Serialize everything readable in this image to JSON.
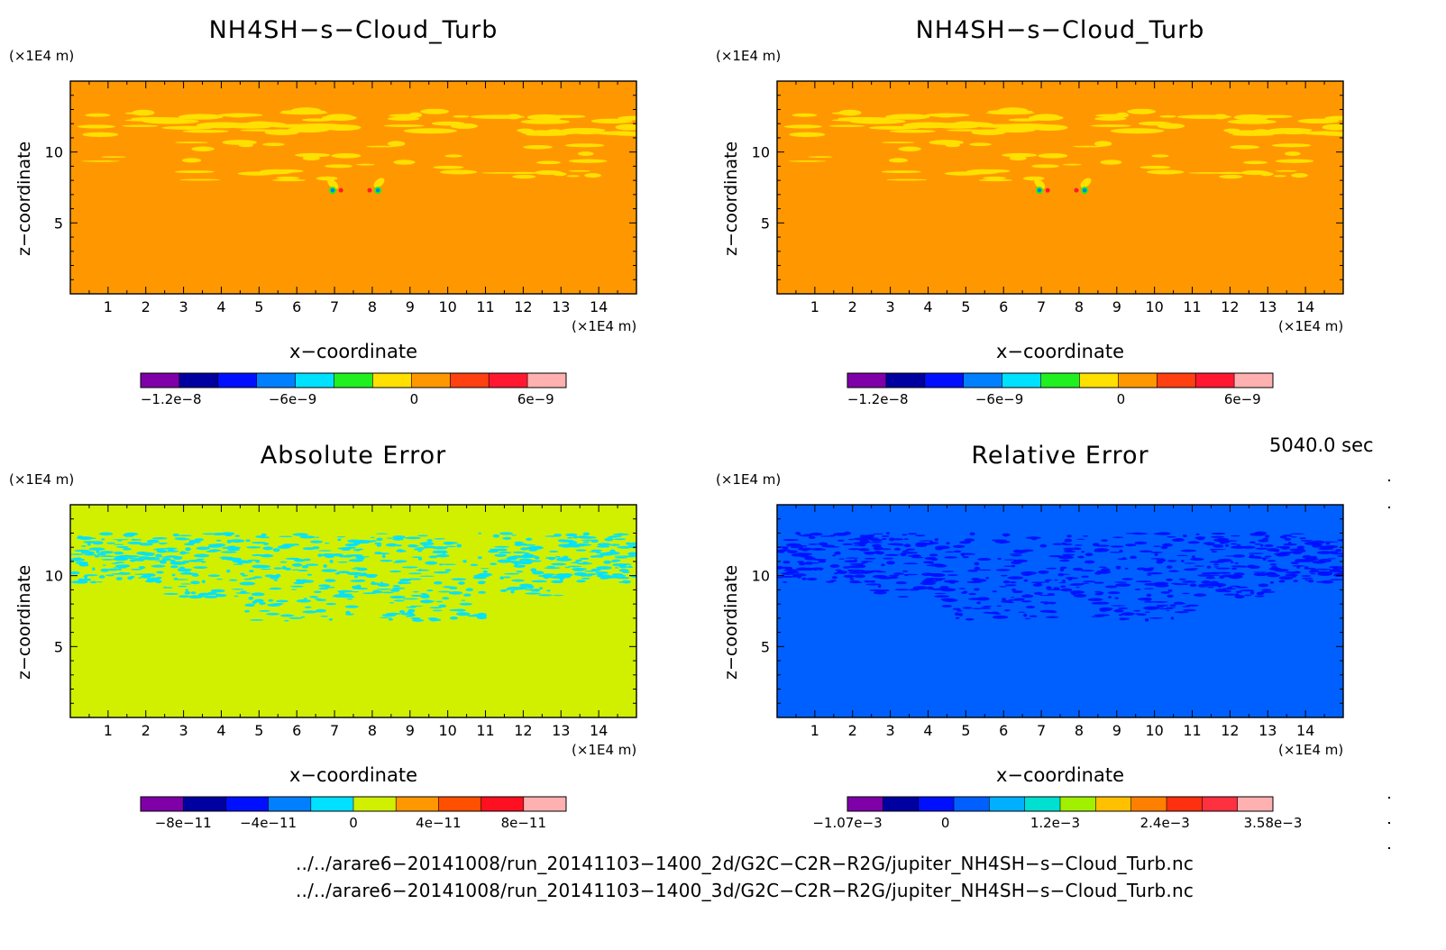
{
  "panels": [
    {
      "id": "top-left",
      "title": "NH4SH−s−Cloud_Turb",
      "y_unit": "(×1E4 m)",
      "x_unit": "(×1E4 m)",
      "xlabel": "x−coordinate",
      "ylabel": "z−coordinate",
      "x_ticks": [
        "1",
        "2",
        "3",
        "4",
        "5",
        "6",
        "7",
        "8",
        "9",
        "10",
        "11",
        "12",
        "13",
        "14"
      ],
      "y_ticks": [
        "5",
        "10"
      ],
      "colorbar": {
        "colors": [
          "#7f00a8",
          "#0000a0",
          "#0010ff",
          "#0080ff",
          "#00e0ff",
          "#20f020",
          "#ffe000",
          "#ff9800",
          "#ff4010",
          "#ff1830",
          "#ffb0b0"
        ],
        "labels": [
          "−1.2e−8",
          "−6e−9",
          "0",
          "6e−9"
        ]
      }
    },
    {
      "id": "top-right",
      "title": "NH4SH−s−Cloud_Turb",
      "y_unit": "(×1E4 m)",
      "x_unit": "(×1E4 m)",
      "xlabel": "x−coordinate",
      "ylabel": "z−coordinate",
      "x_ticks": [
        "1",
        "2",
        "3",
        "4",
        "5",
        "6",
        "7",
        "8",
        "9",
        "10",
        "11",
        "12",
        "13",
        "14"
      ],
      "y_ticks": [
        "5",
        "10"
      ],
      "colorbar": {
        "colors": [
          "#7f00a8",
          "#0000a0",
          "#0010ff",
          "#0080ff",
          "#00e0ff",
          "#20f020",
          "#ffe000",
          "#ff9800",
          "#ff4010",
          "#ff1830",
          "#ffb0b0"
        ],
        "labels": [
          "−1.2e−8",
          "−6e−9",
          "0",
          "6e−9"
        ]
      }
    },
    {
      "id": "bottom-left",
      "title": "Absolute Error",
      "y_unit": "(×1E4 m)",
      "x_unit": "(×1E4 m)",
      "xlabel": "x−coordinate",
      "ylabel": "z−coordinate",
      "x_ticks": [
        "1",
        "2",
        "3",
        "4",
        "5",
        "6",
        "7",
        "8",
        "9",
        "10",
        "11",
        "12",
        "13",
        "14"
      ],
      "y_ticks": [
        "5",
        "10"
      ],
      "colorbar": {
        "colors": [
          "#7f00a8",
          "#0000a0",
          "#0010ff",
          "#0080ff",
          "#00e0ff",
          "#d0f000",
          "#ff9800",
          "#ff5000",
          "#ff1020",
          "#ffb0b0"
        ],
        "labels": [
          "−8e−11",
          "−4e−11",
          "0",
          "4e−11",
          "8e−11"
        ]
      }
    },
    {
      "id": "bottom-right",
      "title": "Relative Error",
      "y_unit": "(×1E4 m)",
      "x_unit": "(×1E4 m)",
      "xlabel": "x−coordinate",
      "ylabel": "z−coordinate",
      "x_ticks": [
        "1",
        "2",
        "3",
        "4",
        "5",
        "6",
        "7",
        "8",
        "9",
        "10",
        "11",
        "12",
        "13",
        "14"
      ],
      "y_ticks": [
        "5",
        "10"
      ],
      "colorbar": {
        "colors": [
          "#7f00a8",
          "#0000a0",
          "#0010ff",
          "#0060ff",
          "#00b0ff",
          "#00e0d0",
          "#a0f000",
          "#ffc000",
          "#ff8000",
          "#ff3010",
          "#ff3040",
          "#ffb0b0"
        ],
        "labels": [
          "−1.07e−3",
          "0",
          "1.2e−3",
          "2.4e−3",
          "3.58e−3"
        ]
      }
    }
  ],
  "timestamp": "5040.0 sec",
  "file_paths": [
    "../../arare6−20141008/run_20141103−1400_2d/G2C−C2R−R2G/jupiter_NH4SH−s−Cloud_Turb.nc",
    "../../arare6−20141008/run_20141103−1400_3d/G2C−C2R−R2G/jupiter_NH4SH−s−Cloud_Turb.nc"
  ],
  "chart_data": [
    {
      "type": "heatmap",
      "title": "NH4SH−s−Cloud_Turb",
      "xlabel": "x−coordinate",
      "ylabel": "z−coordinate",
      "xlim": [
        0,
        15
      ],
      "ylim": [
        0,
        15
      ],
      "x_unit": "×1E4 m",
      "y_unit": "×1E4 m",
      "x_ticks": [
        1,
        2,
        3,
        4,
        5,
        6,
        7,
        8,
        9,
        10,
        11,
        12,
        13,
        14
      ],
      "y_ticks": [
        5,
        10
      ],
      "background_color": "#ff9800",
      "feature_color": "#ffe000",
      "colorbar_range": [
        -1.35e-08,
        7.5e-09
      ],
      "colorbar_labels": [
        "−1.2e−8",
        "−6e−9",
        "0",
        "6e−9"
      ]
    },
    {
      "type": "heatmap",
      "title": "NH4SH−s−Cloud_Turb",
      "xlabel": "x−coordinate",
      "ylabel": "z−coordinate",
      "xlim": [
        0,
        15
      ],
      "ylim": [
        0,
        15
      ],
      "x_unit": "×1E4 m",
      "y_unit": "×1E4 m",
      "x_ticks": [
        1,
        2,
        3,
        4,
        5,
        6,
        7,
        8,
        9,
        10,
        11,
        12,
        13,
        14
      ],
      "y_ticks": [
        5,
        10
      ],
      "background_color": "#ff9800",
      "feature_color": "#ffe000",
      "colorbar_range": [
        -1.35e-08,
        7.5e-09
      ],
      "colorbar_labels": [
        "−1.2e−8",
        "−6e−9",
        "0",
        "6e−9"
      ]
    },
    {
      "type": "heatmap",
      "title": "Absolute Error",
      "xlabel": "x−coordinate",
      "ylabel": "z−coordinate",
      "xlim": [
        0,
        15
      ],
      "ylim": [
        0,
        15
      ],
      "x_unit": "×1E4 m",
      "y_unit": "×1E4 m",
      "x_ticks": [
        1,
        2,
        3,
        4,
        5,
        6,
        7,
        8,
        9,
        10,
        11,
        12,
        13,
        14
      ],
      "y_ticks": [
        5,
        10
      ],
      "background_color": "#d0f000",
      "feature_color": "#00e0ff",
      "colorbar_range": [
        -1e-10,
        1e-10
      ],
      "colorbar_labels": [
        "−8e−11",
        "−4e−11",
        "0",
        "4e−11",
        "8e−11"
      ]
    },
    {
      "type": "heatmap",
      "title": "Relative Error",
      "xlabel": "x−coordinate",
      "ylabel": "z−coordinate",
      "xlim": [
        0,
        15
      ],
      "ylim": [
        0,
        15
      ],
      "x_unit": "×1E4 m",
      "y_unit": "×1E4 m",
      "x_ticks": [
        1,
        2,
        3,
        4,
        5,
        6,
        7,
        8,
        9,
        10,
        11,
        12,
        13,
        14
      ],
      "y_ticks": [
        5,
        10
      ],
      "background_color": "#0060ff",
      "feature_color": "#0010ff",
      "colorbar_range": [
        -0.00107,
        0.00358
      ],
      "colorbar_labels": [
        "−1.07e−3",
        "0",
        "1.2e−3",
        "2.4e−3",
        "3.58e−3"
      ]
    }
  ]
}
